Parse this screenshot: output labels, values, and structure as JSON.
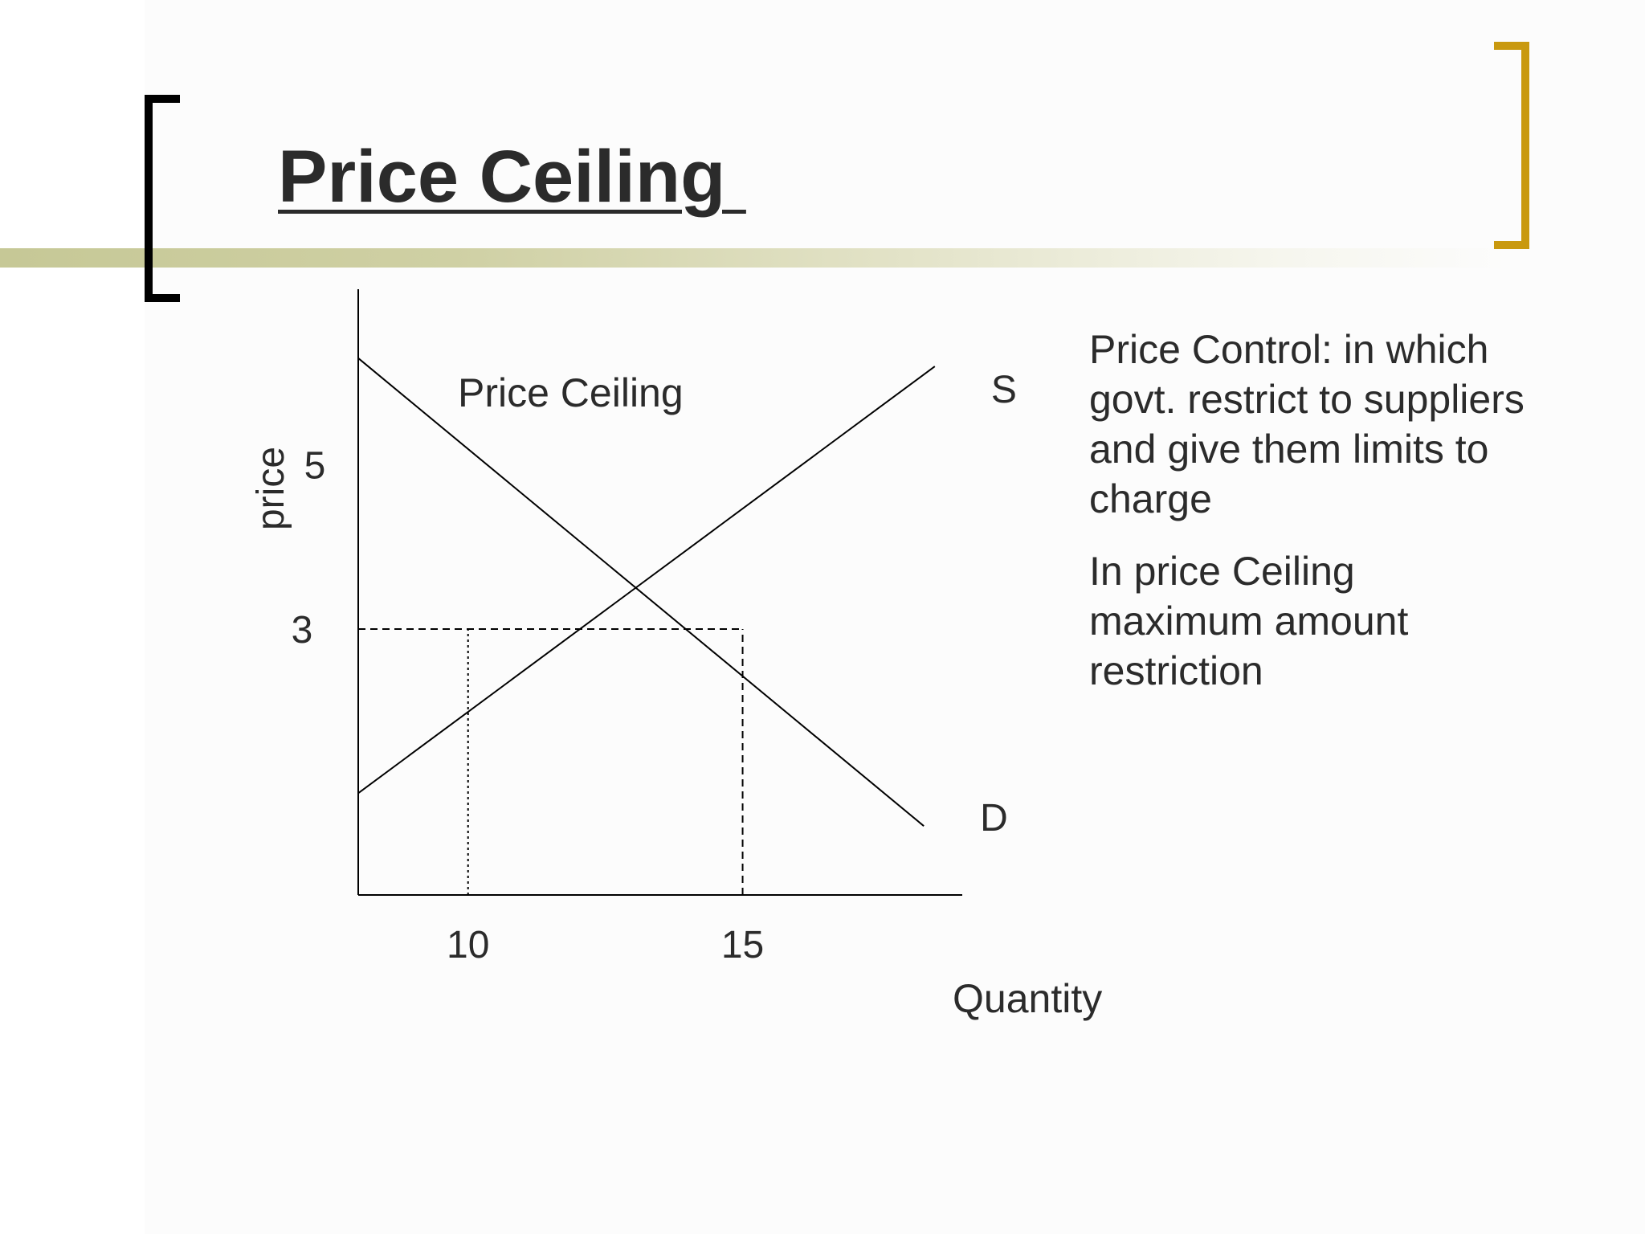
{
  "slide": {
    "title": "Price Ceiling ",
    "colors": {
      "left_bracket": "#000000",
      "right_bracket": "#c9990f",
      "band": "#c6c896",
      "text": "#2b2b2b"
    },
    "body": [
      "Price Control: in which govt. restrict to suppliers and give them limits to charge",
      "In price Ceiling maximum amount restriction"
    ]
  },
  "chart_data": {
    "type": "line",
    "title": "Price Ceiling",
    "xlabel": "Quantity",
    "ylabel": "price",
    "x_ticks": [
      10,
      15
    ],
    "y_ticks": [
      3,
      5
    ],
    "xlim": [
      8,
      19
    ],
    "ylim": [
      -0.24,
      7.14
    ],
    "series": [
      {
        "name": "S",
        "x": [
          8,
          18.5
        ],
        "y": [
          1.0,
          6.2
        ]
      },
      {
        "name": "D",
        "x": [
          8,
          18.3
        ],
        "y": [
          6.3,
          0.6
        ]
      }
    ],
    "reference_lines": [
      {
        "style": "dashed",
        "x": [
          8,
          15
        ],
        "y": [
          3,
          3
        ]
      },
      {
        "style": "dotted",
        "x": [
          10,
          10
        ],
        "y": [
          -0.24,
          3
        ]
      },
      {
        "style": "dashed",
        "x": [
          15,
          15
        ],
        "y": [
          -0.24,
          3
        ]
      }
    ],
    "grid": false,
    "legend": "none"
  }
}
